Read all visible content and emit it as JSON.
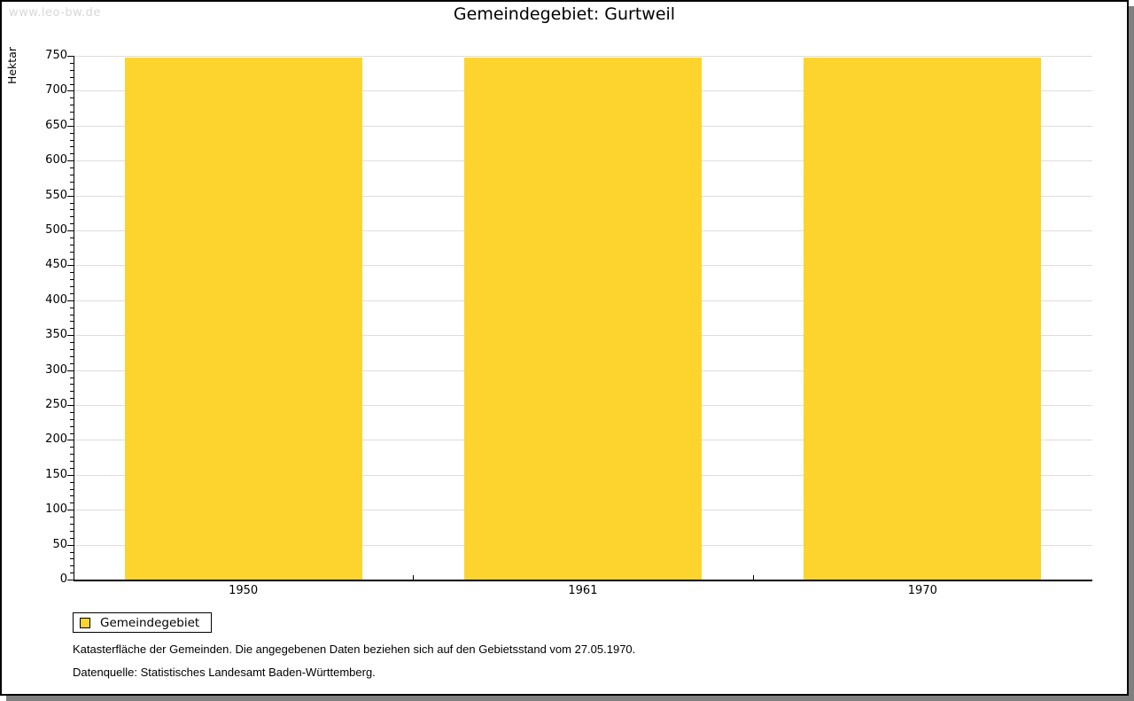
{
  "watermark": "www.leo-bw.de",
  "title": "Gemeindegebiet: Gurtweil",
  "chart_data": {
    "type": "bar",
    "title": "Gemeindegebiet: Gurtweil",
    "categories": [
      "1950",
      "1961",
      "1970"
    ],
    "series": [
      {
        "name": "Gemeindegebiet",
        "values": [
          748,
          748,
          748
        ]
      }
    ],
    "xlabel": "",
    "ylabel": "Hektar",
    "ylim": [
      0,
      750
    ],
    "y_major_step": 50,
    "y_minor_step": 10,
    "grid": true,
    "legend_position": "bottom-left"
  },
  "legend": {
    "items": [
      {
        "label": "Gemeindegebiet",
        "color": "#fcd42d"
      }
    ]
  },
  "footer": {
    "line1": "Katasterfläche der Gemeinden. Die angegebenen Daten beziehen sich auf den Gebietsstand vom 27.05.1970.",
    "line2": "Datenquelle: Statistisches Landesamt Baden-Württemberg."
  },
  "colors": {
    "bar": "#fcd42d",
    "grid": "#dddddd",
    "axis": "#000000",
    "watermark": "#d8d8d8",
    "shadow": "#7f7f7f",
    "background": "#ffffff"
  }
}
